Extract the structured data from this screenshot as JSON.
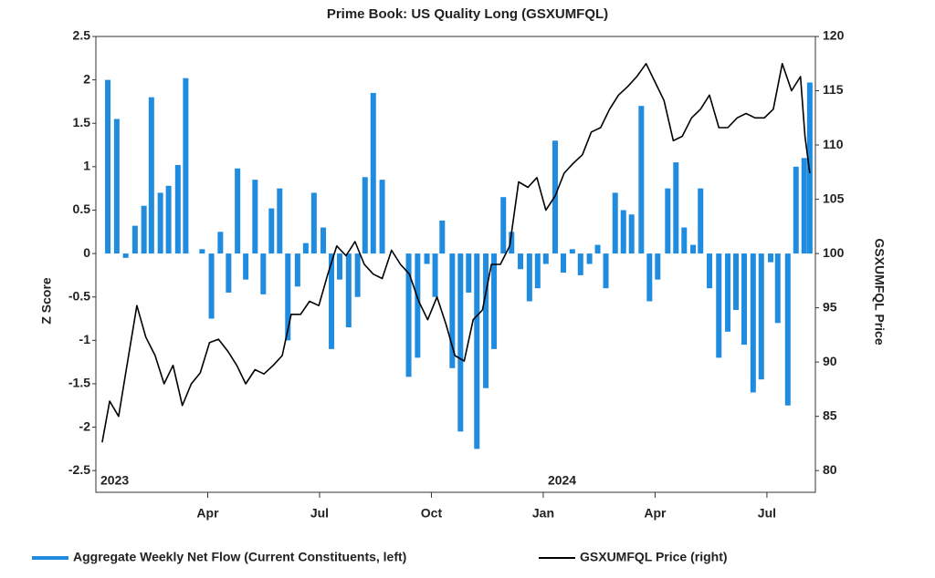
{
  "chart_data": {
    "type": "combo",
    "title": "Prime Book: US Quality Long (GSXUMFQL)",
    "y_label": "Z Score",
    "y2_label": "GSXUMFQL Price",
    "xlim": [
      0,
      19.3
    ],
    "xticks": [
      {
        "value": 3,
        "label": "Apr"
      },
      {
        "value": 6,
        "label": "Jul"
      },
      {
        "value": 9,
        "label": "Oct"
      },
      {
        "value": 12,
        "label": "Jan"
      },
      {
        "value": 15,
        "label": "Apr"
      },
      {
        "value": 18,
        "label": "Jul"
      }
    ],
    "year_labels": [
      {
        "value": 0,
        "label": "2023"
      },
      {
        "value": 12,
        "label": "2024"
      }
    ],
    "ylim": [
      -2.75,
      2.5
    ],
    "yticks": [
      2.5,
      2,
      1.5,
      1,
      0.5,
      0,
      -0.5,
      -1,
      -1.5,
      -2,
      -2.5
    ],
    "y2lim": [
      78,
      120
    ],
    "y2ticks": [
      120,
      115,
      110,
      105,
      100,
      95,
      90,
      85,
      80
    ],
    "legend": "bottom",
    "series": [
      {
        "name": "Aggregate Weekly Net Flow (Current Constituents, left)",
        "type": "bar",
        "color": "#1f8ce0",
        "x": [
          0.32,
          0.56,
          0.8,
          1.05,
          1.29,
          1.49,
          1.73,
          1.95,
          2.2,
          2.41,
          2.85,
          3.1,
          3.34,
          3.56,
          3.8,
          4.02,
          4.27,
          4.49,
          4.71,
          4.93,
          5.15,
          5.41,
          5.63,
          5.85,
          6.1,
          6.32,
          6.54,
          6.78,
          7.02,
          7.22,
          7.44,
          7.68,
          8.39,
          8.63,
          8.88,
          9.1,
          9.29,
          9.56,
          9.78,
          10.0,
          10.22,
          10.46,
          10.68,
          10.93,
          11.15,
          11.39,
          11.63,
          11.85,
          12.07,
          12.32,
          12.54,
          12.78,
          13.0,
          13.24,
          13.46,
          13.68,
          13.93,
          14.15,
          14.37,
          14.63,
          14.85,
          15.07,
          15.34,
          15.56,
          15.78,
          16.02,
          16.22,
          16.46,
          16.71,
          16.95,
          17.17,
          17.39,
          17.63,
          17.85,
          18.1,
          18.29,
          18.56,
          18.78,
          19.0,
          19.15
        ],
        "values": [
          2.0,
          1.55,
          -0.05,
          0.32,
          0.55,
          1.8,
          0.7,
          0.78,
          1.02,
          2.02,
          0.05,
          -0.75,
          0.25,
          -0.45,
          0.98,
          -0.3,
          0.85,
          -0.47,
          0.52,
          0.75,
          -1.0,
          -0.38,
          0.12,
          0.7,
          0.3,
          -1.1,
          -0.3,
          -0.85,
          -0.5,
          0.88,
          1.85,
          0.85,
          -1.42,
          -1.2,
          -0.12,
          -0.5,
          0.38,
          -1.32,
          -2.05,
          -0.45,
          -2.25,
          -1.55,
          -1.1,
          0.65,
          0.25,
          -0.18,
          -0.55,
          -0.4,
          -0.12,
          1.3,
          -0.22,
          0.05,
          -0.25,
          -0.12,
          0.1,
          -0.4,
          0.7,
          0.5,
          0.45,
          1.7,
          -0.55,
          -0.3,
          0.75,
          1.05,
          0.3,
          0.1,
          0.75,
          -0.4,
          -1.2,
          -0.9,
          -0.65,
          -1.05,
          -1.6,
          -1.45,
          -0.1,
          -0.8,
          -1.75,
          1.0,
          1.1,
          1.97
        ]
      },
      {
        "name": "GSXUMFQL Price (right)",
        "type": "line",
        "axis": "y2",
        "color": "#000000",
        "x": [
          0.17,
          0.37,
          0.61,
          0.8,
          1.1,
          1.34,
          1.59,
          1.83,
          2.07,
          2.32,
          2.56,
          2.8,
          3.05,
          3.29,
          3.54,
          3.78,
          4.02,
          4.27,
          4.51,
          4.76,
          5.0,
          5.24,
          5.49,
          5.73,
          5.98,
          6.22,
          6.46,
          6.71,
          6.95,
          7.2,
          7.44,
          7.68,
          7.93,
          8.17,
          8.41,
          8.66,
          8.9,
          9.15,
          9.39,
          9.63,
          9.88,
          10.12,
          10.37,
          10.61,
          10.85,
          11.1,
          11.34,
          11.59,
          11.83,
          12.07,
          12.32,
          12.56,
          12.8,
          13.05,
          13.29,
          13.54,
          13.78,
          14.02,
          14.27,
          14.51,
          14.76,
          15.0,
          15.24,
          15.49,
          15.73,
          15.98,
          16.22,
          16.46,
          16.71,
          16.95,
          17.2,
          17.44,
          17.68,
          17.93,
          18.17,
          18.41,
          18.66,
          18.9,
          19.02,
          19.15
        ],
        "values": [
          82.6,
          86.4,
          85,
          89,
          95.2,
          92.3,
          90.6,
          88,
          89.7,
          86,
          88,
          89,
          91.8,
          92.1,
          91,
          89.7,
          88,
          89.3,
          88.9,
          89.7,
          90.6,
          94.4,
          94.4,
          95.6,
          95.2,
          98.1,
          100.7,
          99.8,
          101.1,
          99,
          98.1,
          97.7,
          100.3,
          99,
          98.1,
          95.6,
          93.9,
          96,
          93.5,
          90.6,
          90.1,
          93.9,
          94.8,
          99,
          99,
          100.7,
          106.6,
          106.1,
          107,
          104,
          105.3,
          107.4,
          108.3,
          109.1,
          111.2,
          111.6,
          113.3,
          114.6,
          115.4,
          116.3,
          117.5,
          115.8,
          114.1,
          110.4,
          110.8,
          112.5,
          113.3,
          114.6,
          111.6,
          111.6,
          112.5,
          112.9,
          112.5,
          112.5,
          113.3,
          117.5,
          115,
          116.3,
          110.8,
          107.4
        ]
      }
    ]
  }
}
